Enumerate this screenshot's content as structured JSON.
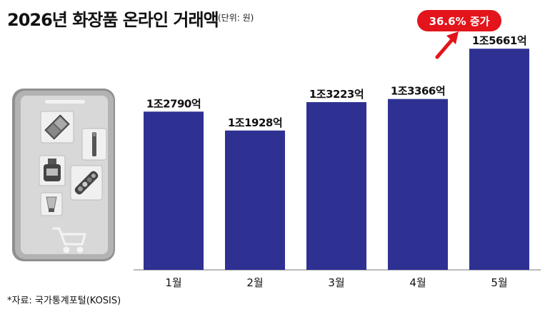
{
  "header": {
    "title": "2026년 화장품 온라인 거래액",
    "unit": "(단위: 원)"
  },
  "source": "*자료: 국가통계포털(KOSIS)",
  "callout": {
    "text": "36.6% 증가"
  },
  "colors": {
    "bar": "#2e3192",
    "callout": "#e3141b",
    "phone_body": "#a6a6a6",
    "phone_screen": "#d6d6d6"
  },
  "illustration": {
    "icons": [
      "phone-icon",
      "eyeshadow-palette-icon",
      "lip-liner-icon",
      "perfume-bottle-icon",
      "cosmetics-pencils-icon",
      "cream-tube-icon",
      "shopping-cart-icon"
    ]
  },
  "chart_data": {
    "type": "bar",
    "categories": [
      "1월",
      "2월",
      "3월",
      "4월",
      "5월"
    ],
    "values": [
      12790,
      11928,
      13223,
      13366,
      15661
    ],
    "value_unit": "억원",
    "data_labels": [
      "1조2790억",
      "1조1928억",
      "1조3223억",
      "1조3366억",
      "1조5661억"
    ],
    "title": "2026년 화장품 온라인 거래액",
    "xlabel": "",
    "ylabel": "",
    "grid": false,
    "legend": "none"
  }
}
